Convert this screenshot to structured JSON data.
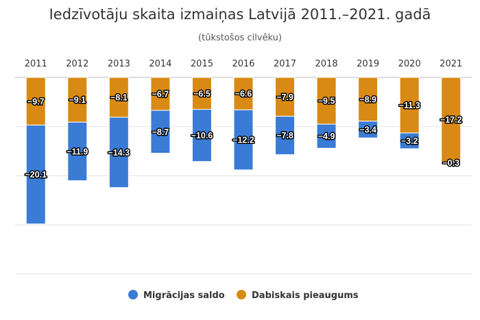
{
  "chart_data": {
    "type": "bar",
    "stacked": true,
    "title": "Iedzīvotāju skaita izmaiņas Latvijā 2011.–2021. gadā",
    "subtitle": "(tūkstošos cilvēku)",
    "categories": [
      "2011",
      "2012",
      "2013",
      "2014",
      "2015",
      "2016",
      "2017",
      "2018",
      "2019",
      "2020",
      "2021"
    ],
    "series": [
      {
        "name": "Migrācijas saldo",
        "color": "#3a7bd5",
        "values": [
          -20.1,
          -11.9,
          -14.3,
          -8.7,
          -10.6,
          -12.2,
          -7.8,
          -4.9,
          -3.4,
          -3.2,
          -0.3
        ],
        "labels": [
          "−20.1",
          "−11.9",
          "−14.3",
          "−8.7",
          "−10.6",
          "−12.2",
          "−7.8",
          "−4.9",
          "−3.4",
          "−3.2",
          "−0.3"
        ]
      },
      {
        "name": "Dabiskais pieaugums",
        "color": "#d88a14",
        "values": [
          -9.7,
          -9.1,
          -8.1,
          -6.7,
          -6.5,
          -6.6,
          -7.9,
          -9.5,
          -8.9,
          -11.3,
          -17.2
        ],
        "labels": [
          "−9.7",
          "−9.1",
          "−8.1",
          "−6.7",
          "−6.5",
          "−6.6",
          "−7.9",
          "−9.5",
          "−8.9",
          "−11.3",
          "−17.2"
        ]
      }
    ],
    "ylim": [
      -40,
      0
    ],
    "xaxis_position": "top",
    "grid": true,
    "legend_position": "bottom"
  }
}
